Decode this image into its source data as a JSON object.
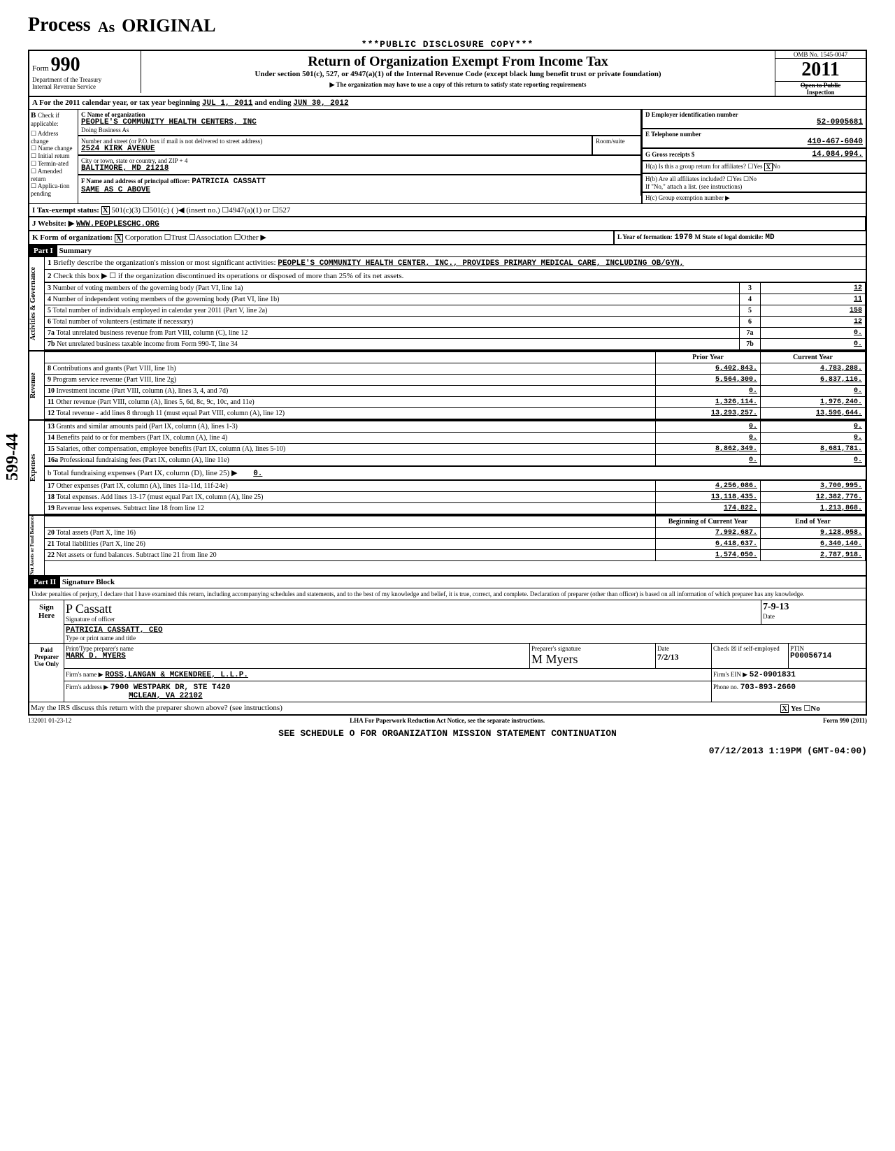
{
  "stamp": {
    "word1": "Process",
    "word2": "As",
    "word3": "ORIGINAL",
    "copy_line": "***PUBLIC DISCLOSURE COPY***"
  },
  "header": {
    "form_word": "Form",
    "form_number": "990",
    "dept": "Department of the Treasury",
    "irs": "Internal Revenue Service",
    "title": "Return of Organization Exempt From Income Tax",
    "subtitle": "Under section 501(c), 527, or 4947(a)(1) of the Internal Revenue Code (except black lung benefit trust or private foundation)",
    "arrow_note": "▶ The organization may have to use a copy of this return to satisfy state reporting requirements",
    "omb": "OMB No. 1545-0047",
    "year": "2011",
    "open": "Open to Public",
    "inspection": "Inspection"
  },
  "line_a": {
    "prefix": "A For the 2011 calendar year, or tax year beginning",
    "begin": "JUL 1, 2011",
    "mid": "and ending",
    "end": "JUN 30, 2012"
  },
  "block_b": {
    "label": "B",
    "check_if": "Check if applicable:",
    "items": [
      "Address change",
      "Name change",
      "Initial return",
      "Termin-ated",
      "Amended return",
      "Applica-tion pending"
    ]
  },
  "block_c": {
    "label_c": "C Name of organization",
    "org_name": "PEOPLE'S COMMUNITY HEALTH CENTERS, INC",
    "dba_label": "Doing Business As",
    "street_label": "Number and street (or P.O. box if mail is not delivered to street address)",
    "room_label": "Room/suite",
    "street": "2524 KIRK AVENUE",
    "city_label": "City or town, state or country, and ZIP + 4",
    "city": "BALTIMORE, MD  21218",
    "f_label": "F Name and address of principal officer:",
    "f_name": "PATRICIA CASSATT",
    "f_addr": "SAME AS C ABOVE"
  },
  "block_d": {
    "label": "D Employer identification number",
    "ein": "52-0905681",
    "e_label": "E Telephone number",
    "phone": "410-467-6040",
    "g_label": "G Gross receipts $",
    "g_val": "14,084,994.",
    "h_a": "H(a) Is this a group return for affiliates?",
    "h_a_yes": "Yes",
    "h_a_no": "No",
    "h_a_checked": "X",
    "h_b": "H(b) Are all affiliates included?",
    "h_b_yes": "Yes",
    "h_b_no": "No",
    "h_b_note": "If \"No,\" attach a list. (see instructions)",
    "h_c": "H(c) Group exemption number ▶"
  },
  "status_row": {
    "i_label": "I Tax-exempt status:",
    "i_501c3_x": "X",
    "i_501c3": "501(c)(3)",
    "i_501c": "501(c) (",
    "i_insert": ")◀ (insert no.)",
    "i_4947": "4947(a)(1) or",
    "i_527": "527",
    "j_label": "J Website: ▶",
    "j_val": "WWW.PEOPLESCHC.ORG",
    "k_label": "K Form of organization:",
    "k_corp_x": "X",
    "k_corp": "Corporation",
    "k_trust": "Trust",
    "k_assoc": "Association",
    "k_other": "Other ▶",
    "l_label": "L Year of formation:",
    "l_val": "1970",
    "m_label": "M State of legal domicile:",
    "m_val": "MD"
  },
  "part1": {
    "label": "Part I",
    "title": "Summary",
    "side_gov": "Activities & Governance",
    "side_rev": "Revenue",
    "side_exp": "Expenses",
    "side_net": "Net Assets or Fund Balances",
    "line1_label": "Briefly describe the organization's mission or most significant activities:",
    "line1_text": "PEOPLE'S COMMUNITY HEALTH CENTER, INC., PROVIDES PRIMARY MEDICAL CARE, INCLUDING OB/GYN,",
    "line2_label": "Check this box ▶ ☐ if the organization discontinued its operations or disposed of more than 25% of its net assets.",
    "rows_gov": [
      {
        "n": "3",
        "label": "Number of voting members of the governing body (Part VI, line 1a)",
        "val": "12"
      },
      {
        "n": "4",
        "label": "Number of independent voting members of the governing body (Part VI, line 1b)",
        "val": "11"
      },
      {
        "n": "5",
        "label": "Total number of individuals employed in calendar year 2011 (Part V, line 2a)",
        "val": "158"
      },
      {
        "n": "6",
        "label": "Total number of volunteers (estimate if necessary)",
        "val": "12"
      },
      {
        "n": "7a",
        "label": "Total unrelated business revenue from Part VIII, column (C), line 12",
        "val": "0."
      },
      {
        "n": "7b",
        "label": "Net unrelated business taxable income from Form 990-T, line 34",
        "val": "0."
      }
    ],
    "col_prior": "Prior Year",
    "col_current": "Current Year",
    "rows_rev": [
      {
        "n": "8",
        "label": "Contributions and grants (Part VIII, line 1h)",
        "prior": "6,402,843.",
        "curr": "4,783,288."
      },
      {
        "n": "9",
        "label": "Program service revenue (Part VIII, line 2g)",
        "prior": "5,564,300.",
        "curr": "6,837,116."
      },
      {
        "n": "10",
        "label": "Investment income (Part VIII, column (A), lines 3, 4, and 7d)",
        "prior": "0.",
        "curr": "0."
      },
      {
        "n": "11",
        "label": "Other revenue (Part VIII, column (A), lines 5, 6d, 8c, 9c, 10c, and 11e)",
        "prior": "1,326,114.",
        "curr": "1,976,240."
      },
      {
        "n": "12",
        "label": "Total revenue - add lines 8 through 11 (must equal Part VIII, column (A), line 12)",
        "prior": "13,293,257.",
        "curr": "13,596,644."
      }
    ],
    "rows_exp": [
      {
        "n": "13",
        "label": "Grants and similar amounts paid (Part IX, column (A), lines 1-3)",
        "prior": "0.",
        "curr": "0."
      },
      {
        "n": "14",
        "label": "Benefits paid to or for members (Part IX, column (A), line 4)",
        "prior": "0.",
        "curr": "0."
      },
      {
        "n": "15",
        "label": "Salaries, other compensation, employee benefits (Part IX, column (A), lines 5-10)",
        "prior": "8,862,349.",
        "curr": "8,681,781."
      },
      {
        "n": "16a",
        "label": "Professional fundraising fees (Part IX, column (A), line 11e)",
        "prior": "0.",
        "curr": "0."
      }
    ],
    "line16b": "b Total fundraising expenses (Part IX, column (D), line 25)  ▶",
    "line16b_val": "0.",
    "rows_exp2": [
      {
        "n": "17",
        "label": "Other expenses (Part IX, column (A), lines 11a-11d, 11f-24e)",
        "prior": "4,256,086.",
        "curr": "3,700,995."
      },
      {
        "n": "18",
        "label": "Total expenses. Add lines 13-17 (must equal Part IX, column (A), line 25)",
        "prior": "13,118,435.",
        "curr": "12,382,776."
      },
      {
        "n": "19",
        "label": "Revenue less expenses. Subtract line 18 from line 12",
        "prior": "174,822.",
        "curr": "1,213,868."
      }
    ],
    "col_begin": "Beginning of Current Year",
    "col_end": "End of Year",
    "rows_net": [
      {
        "n": "20",
        "label": "Total assets (Part X, line 16)",
        "prior": "7,992,687.",
        "curr": "9,128,058."
      },
      {
        "n": "21",
        "label": "Total liabilities (Part X, line 26)",
        "prior": "6,418,637.",
        "curr": "6,340,140."
      },
      {
        "n": "22",
        "label": "Net assets or fund balances. Subtract line 21 from line 20",
        "prior": "1,574,050.",
        "curr": "2,787,918."
      }
    ]
  },
  "part2": {
    "label": "Part II",
    "title": "Signature Block",
    "perjury": "Under penalties of perjury, I declare that I have examined this return, including accompanying schedules and statements, and to the best of my knowledge and belief, it is true, correct, and complete. Declaration of preparer (other than officer) is based on all information of which preparer has any knowledge.",
    "sign_here": "Sign Here",
    "sig_of_officer": "Signature of officer",
    "sig_date_label": "Date",
    "sig_date": "7-9-13",
    "officer_name": "PATRICIA CASSATT, CEO",
    "type_label": "Type or print name and title",
    "paid_prep": "Paid Preparer Use Only",
    "prep_name_label": "Print/Type preparer's name",
    "prep_name": "MARK D. MYERS",
    "prep_sig_label": "Preparer's signature",
    "prep_date_label": "Date",
    "prep_date": "7/2/13",
    "self_emp": "Check ☒ if self-employed",
    "ptin_label": "PTIN",
    "ptin": "P00056714",
    "firm_name_label": "Firm's name ▶",
    "firm_name": "ROSS,LANGAN & MCKENDREE, L.L.P.",
    "firm_ein_label": "Firm's EIN ▶",
    "firm_ein": "52-0901831",
    "firm_addr_label": "Firm's address ▶",
    "firm_addr1": "7900 WESTPARK DR, STE T420",
    "firm_addr2": "MCLEAN, VA 22102",
    "firm_phone_label": "Phone no.",
    "firm_phone": "703-893-2660",
    "irs_discuss": "May the IRS discuss this return with the preparer shown above? (see instructions)",
    "irs_yes": "Yes",
    "irs_yes_x": "X",
    "irs_no": "No"
  },
  "footer": {
    "code": "132001 01-23-12",
    "lha": "LHA For Paperwork Reduction Act Notice, see the separate instructions.",
    "form": "Form 990 (2011)",
    "see": "SEE SCHEDULE O FOR ORGANIZATION MISSION STATEMENT CONTINUATION",
    "stamp": "07/12/2013  1:19PM (GMT-04:00)",
    "margin": "599-44"
  }
}
